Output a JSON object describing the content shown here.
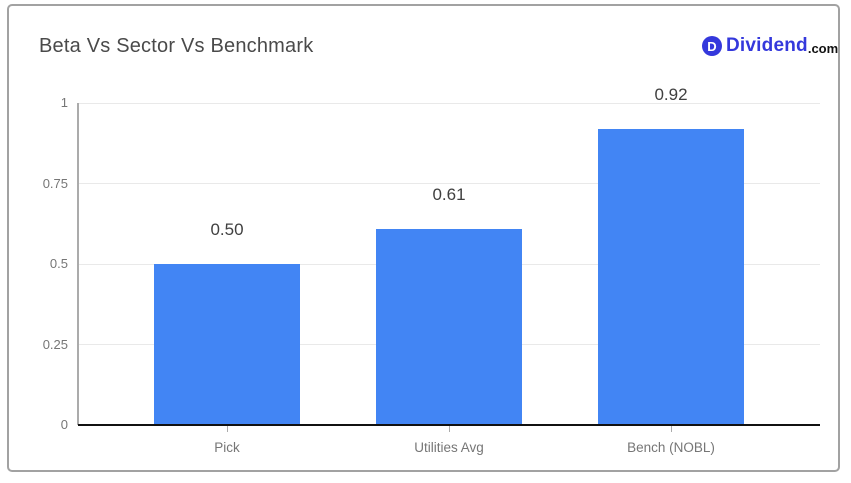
{
  "header": {
    "title": "Beta Vs Sector Vs Benchmark",
    "logo": {
      "monogram": "D",
      "text": "Dividend",
      "suffix": ".com"
    }
  },
  "colors": {
    "bar": "#4285f4",
    "logo_blue": "#3438dc",
    "title_text": "#4a4a4a",
    "axis_label": "#767676",
    "value_label": "#404040",
    "gridline": "#e9e9e9",
    "y_axis_line": "#ababab",
    "x_axis_line": "#111111",
    "card_border": "#a2a2a2"
  },
  "chart_data": {
    "type": "bar",
    "title": "Beta Vs Sector Vs Benchmark",
    "categories": [
      "Pick",
      "Utilities Avg",
      "Bench (NOBL)"
    ],
    "values": [
      0.5,
      0.61,
      0.92
    ],
    "value_labels": [
      "0.50",
      "0.61",
      "0.92"
    ],
    "xlabel": "",
    "ylabel": "",
    "ylim": [
      0,
      1
    ],
    "yticks": [
      0,
      0.25,
      0.5,
      0.75,
      1
    ],
    "ytick_labels": [
      "0",
      "0.25",
      "0.5",
      "0.75",
      "1"
    ],
    "grid": true,
    "legend": false
  }
}
